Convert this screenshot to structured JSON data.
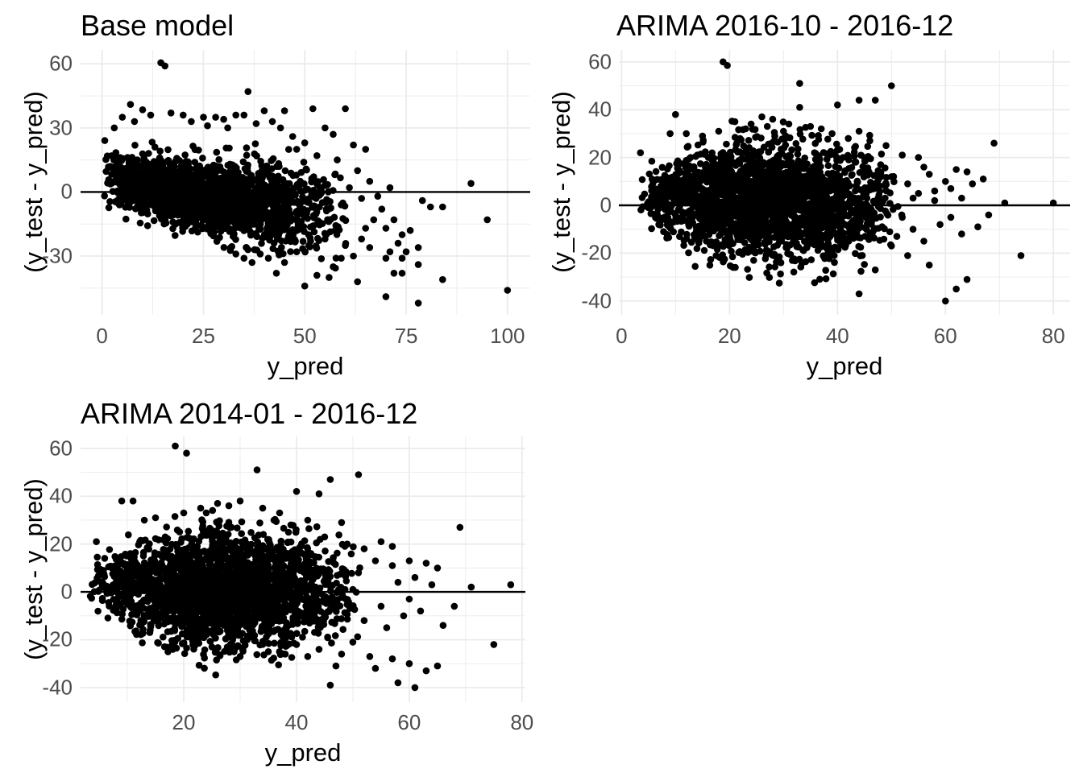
{
  "figure": {
    "background_color": "#ffffff",
    "grid_color": "#ebebeb",
    "tick_label_color": "#4d4d4d",
    "point_color": "#000000",
    "zero_line_color": "#000000"
  },
  "chart_data": [
    {
      "type": "scatter",
      "title": "Base model",
      "xlabel": "y_pred",
      "ylabel": "(y_test - y_pred)",
      "xlim": [
        -5.3,
        105.6
      ],
      "ylim": [
        -57.5,
        66.5
      ],
      "x_major_ticks": [
        0,
        25,
        50,
        75,
        100
      ],
      "x_minor_ticks": [
        12.5,
        37.5,
        62.5,
        87.5
      ],
      "y_major_ticks": [
        -30,
        0,
        30,
        60
      ],
      "y_minor_ticks": [
        -45,
        -15,
        15,
        45
      ],
      "hline_y": 0,
      "legend": "none",
      "grid": true,
      "cloud": {
        "seed": 3,
        "n": 1900,
        "x_min": 0.5,
        "x_span": 61,
        "x_w1": 0.6,
        "x_w2": 0.4,
        "x_pow": 1.3,
        "mean_a": 6.5,
        "mean_b": -0.3,
        "sd_a": 6.0,
        "sd_b": 0.09,
        "sd_c": 0
      },
      "outliers": [
        [
          14.5,
          60.5
        ],
        [
          15.5,
          59
        ],
        [
          36,
          47
        ],
        [
          7,
          41
        ],
        [
          10,
          38.5
        ],
        [
          5,
          35
        ],
        [
          12,
          36
        ],
        [
          17,
          37
        ],
        [
          20,
          36
        ],
        [
          25,
          35
        ],
        [
          28,
          35
        ],
        [
          30,
          34
        ],
        [
          33,
          36
        ],
        [
          35,
          36
        ],
        [
          38,
          32
        ],
        [
          40,
          38
        ],
        [
          42,
          33
        ],
        [
          44,
          30
        ],
        [
          45,
          38
        ],
        [
          47,
          26
        ],
        [
          50,
          23
        ],
        [
          52,
          39
        ],
        [
          55,
          30
        ],
        [
          57,
          27
        ],
        [
          60,
          39
        ],
        [
          62,
          22
        ],
        [
          65,
          20
        ],
        [
          3,
          30
        ],
        [
          8,
          33
        ],
        [
          22,
          33
        ],
        [
          26,
          31
        ],
        [
          31,
          30
        ],
        [
          48,
          20
        ],
        [
          53,
          17
        ],
        [
          58,
          15
        ],
        [
          63,
          10
        ],
        [
          66,
          5
        ],
        [
          61,
          2
        ],
        [
          68,
          -2
        ],
        [
          71,
          2
        ],
        [
          91,
          4
        ],
        [
          95,
          -13
        ],
        [
          72,
          -13
        ],
        [
          67,
          -13
        ],
        [
          70,
          -17
        ],
        [
          74,
          -20
        ],
        [
          64,
          -22
        ],
        [
          66,
          -26
        ],
        [
          71,
          -28
        ],
        [
          75,
          -28
        ],
        [
          78,
          -26
        ],
        [
          81,
          -7
        ],
        [
          84,
          -7
        ],
        [
          79,
          -4
        ],
        [
          70,
          -31
        ],
        [
          74,
          -31
        ],
        [
          78,
          -34
        ],
        [
          84,
          -41
        ],
        [
          78,
          -52
        ],
        [
          70,
          -49
        ],
        [
          74,
          -38
        ],
        [
          72,
          -38
        ],
        [
          63,
          -42
        ],
        [
          53,
          -39
        ],
        [
          57,
          -35
        ],
        [
          59,
          -31
        ],
        [
          56,
          -40
        ],
        [
          50,
          -44
        ],
        [
          43,
          -38
        ],
        [
          45,
          -33
        ],
        [
          41,
          -31
        ],
        [
          37,
          -33
        ],
        [
          35,
          -31
        ],
        [
          100,
          -46
        ],
        [
          48,
          -28
        ],
        [
          51,
          -25
        ],
        [
          55,
          -22
        ],
        [
          60,
          -25
        ],
        [
          62,
          -30
        ],
        [
          65,
          -17
        ],
        [
          58,
          -18
        ],
        [
          56,
          -13
        ],
        [
          59,
          -6
        ],
        [
          64,
          -3
        ],
        [
          69,
          -8
        ],
        [
          73,
          -24
        ],
        [
          76,
          -18
        ],
        [
          33,
          -29
        ],
        [
          36,
          -27
        ],
        [
          39,
          -29
        ]
      ]
    },
    {
      "type": "scatter",
      "title": "ARIMA 2016-10 - 2016-12",
      "xlabel": "y_pred",
      "ylabel": "(y_test - y_pred)",
      "xlim": [
        -0.5,
        83.1
      ],
      "ylim": [
        -45.8,
        65.0
      ],
      "x_major_ticks": [
        0,
        20,
        40,
        60,
        80
      ],
      "x_minor_ticks": [
        10,
        30,
        50,
        70
      ],
      "y_major_ticks": [
        -40,
        -20,
        0,
        20,
        40,
        60
      ],
      "y_minor_ticks": [
        -30,
        -10,
        10,
        30,
        50
      ],
      "hline_y": 0,
      "legend": "none",
      "grid": true,
      "cloud": {
        "seed": 7,
        "n": 2400,
        "x_min": 3,
        "x_span": 49,
        "x_w1": 0.5,
        "x_w2": 0.5,
        "x_pow": 1.05,
        "mean_a": 2.5,
        "mean_b": -0.04,
        "sd_a": 3.0,
        "sd_b": 0.6,
        "sd_c": -0.01
      },
      "outliers": [
        [
          18.8,
          60
        ],
        [
          19.6,
          58.5
        ],
        [
          33,
          51
        ],
        [
          50,
          50
        ],
        [
          44,
          44
        ],
        [
          47,
          44
        ],
        [
          40,
          42
        ],
        [
          33,
          41
        ],
        [
          10,
          38
        ],
        [
          26,
          37
        ],
        [
          28,
          36
        ],
        [
          21,
          35
        ],
        [
          24,
          34
        ],
        [
          35,
          33
        ],
        [
          37,
          32
        ],
        [
          30,
          31
        ],
        [
          44,
          31
        ],
        [
          9,
          30
        ],
        [
          12,
          30
        ],
        [
          15,
          29
        ],
        [
          18,
          31
        ],
        [
          23,
          32
        ],
        [
          27,
          33
        ],
        [
          31,
          34
        ],
        [
          39,
          30
        ],
        [
          42,
          28
        ],
        [
          46,
          27
        ],
        [
          49,
          25
        ],
        [
          52,
          21
        ],
        [
          55,
          20
        ],
        [
          69,
          26
        ],
        [
          57,
          13
        ],
        [
          62,
          15
        ],
        [
          60,
          10
        ],
        [
          65,
          9
        ],
        [
          58,
          6
        ],
        [
          63,
          3
        ],
        [
          80,
          1
        ],
        [
          71,
          1
        ],
        [
          74,
          -21
        ],
        [
          60,
          -40
        ],
        [
          62,
          -35
        ],
        [
          64,
          -31
        ],
        [
          57,
          -25
        ],
        [
          44,
          -37
        ],
        [
          53,
          -21
        ],
        [
          50,
          -17
        ],
        [
          47,
          -27
        ],
        [
          51,
          -13
        ],
        [
          54,
          -10
        ],
        [
          56,
          -15
        ],
        [
          59,
          -8
        ],
        [
          61,
          -5
        ],
        [
          63,
          -12
        ],
        [
          66,
          -9
        ],
        [
          68,
          -4
        ],
        [
          55,
          5
        ],
        [
          58,
          2
        ],
        [
          61,
          7
        ],
        [
          64,
          14
        ],
        [
          67,
          11
        ],
        [
          53,
          9
        ],
        [
          56,
          16
        ],
        [
          52,
          -5
        ],
        [
          54,
          3
        ],
        [
          3.5,
          22
        ],
        [
          45,
          20
        ],
        [
          48,
          17
        ],
        [
          50,
          12
        ]
      ]
    },
    {
      "type": "scatter",
      "title": "ARIMA 2014-01 - 2016-12",
      "xlabel": "y_pred",
      "ylabel": "(y_test - y_pred)",
      "xlim": [
        1.7,
        80.6
      ],
      "ylim": [
        -46.1,
        65.0
      ],
      "x_major_ticks": [
        20,
        40,
        60,
        80
      ],
      "x_minor_ticks": [
        10,
        30,
        50,
        70
      ],
      "y_major_ticks": [
        -40,
        -20,
        0,
        20,
        40,
        60
      ],
      "y_minor_ticks": [
        -30,
        -10,
        10,
        30,
        50
      ],
      "hline_y": 0,
      "legend": "none",
      "grid": true,
      "cloud": {
        "seed": 13,
        "n": 2400,
        "x_min": 3,
        "x_span": 49,
        "x_w1": 0.5,
        "x_w2": 0.5,
        "x_pow": 1.05,
        "mean_a": 2.5,
        "mean_b": -0.04,
        "sd_a": 3.0,
        "sd_b": 0.6,
        "sd_c": -0.01
      },
      "outliers": [
        [
          18.5,
          61
        ],
        [
          20.5,
          58
        ],
        [
          33,
          51
        ],
        [
          51,
          49
        ],
        [
          46,
          47
        ],
        [
          40,
          42
        ],
        [
          44,
          41
        ],
        [
          30,
          38
        ],
        [
          9,
          38
        ],
        [
          11,
          38
        ],
        [
          26,
          37
        ],
        [
          28,
          36
        ],
        [
          34,
          35
        ],
        [
          24,
          33
        ],
        [
          37,
          33
        ],
        [
          15,
          31
        ],
        [
          13,
          30
        ],
        [
          42,
          30
        ],
        [
          48,
          29
        ],
        [
          69,
          27
        ],
        [
          55,
          21
        ],
        [
          57,
          19
        ],
        [
          52,
          18
        ],
        [
          60,
          13
        ],
        [
          63,
          12
        ],
        [
          65,
          10
        ],
        [
          71,
          2
        ],
        [
          78,
          3
        ],
        [
          75,
          -22
        ],
        [
          61,
          -40
        ],
        [
          58,
          -38
        ],
        [
          46,
          -39
        ],
        [
          63,
          -33
        ],
        [
          65,
          -31
        ],
        [
          60,
          -30
        ],
        [
          53,
          -27
        ],
        [
          48,
          -26
        ],
        [
          44,
          -24
        ],
        [
          38,
          -26
        ],
        [
          35,
          -25
        ],
        [
          30,
          -27
        ],
        [
          25,
          -23
        ],
        [
          56,
          -15
        ],
        [
          59,
          -10
        ],
        [
          62,
          -8
        ],
        [
          66,
          -14
        ],
        [
          68,
          -6
        ],
        [
          54,
          -32
        ],
        [
          57,
          -28
        ],
        [
          50,
          -21
        ],
        [
          52,
          -12
        ],
        [
          55,
          -6
        ],
        [
          58,
          4
        ],
        [
          61,
          6
        ],
        [
          64,
          3
        ],
        [
          51,
          8
        ],
        [
          54,
          13
        ],
        [
          57,
          11
        ],
        [
          60,
          -3
        ],
        [
          47,
          -31
        ],
        [
          42,
          -27
        ],
        [
          4.5,
          21
        ],
        [
          20,
          33
        ],
        [
          23,
          35
        ],
        [
          36,
          30
        ],
        [
          39,
          28
        ],
        [
          45,
          23
        ],
        [
          49,
          20
        ]
      ]
    }
  ]
}
